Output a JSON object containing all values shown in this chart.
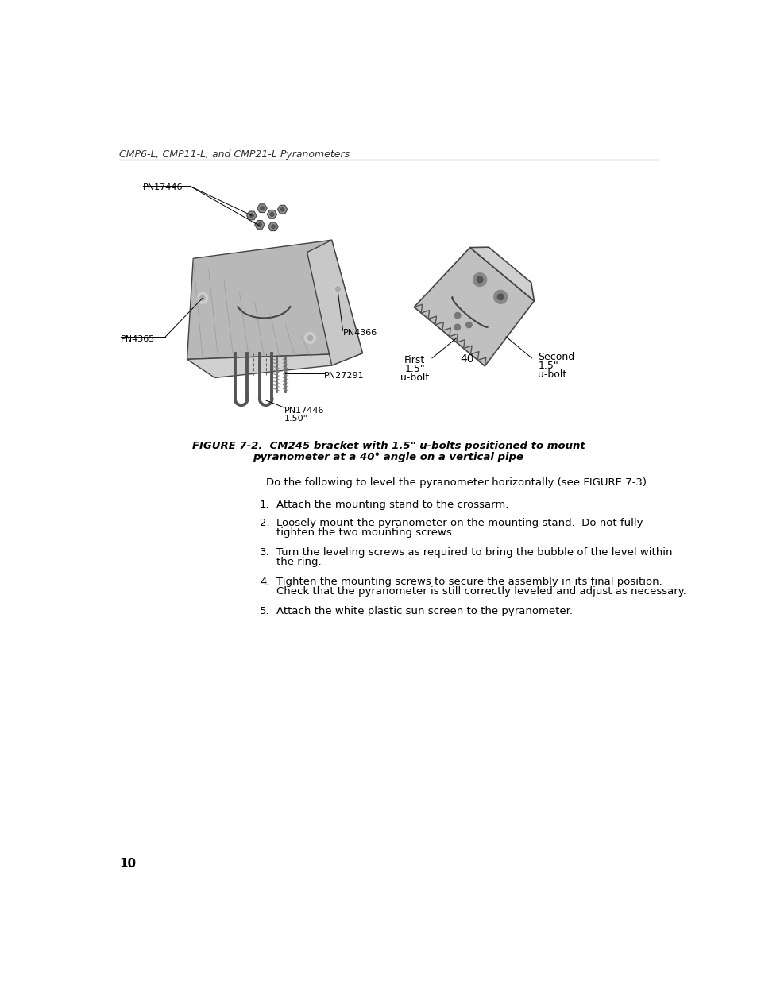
{
  "page_header": "CMP6-L, CMP11-L, and CMP21-L Pyranometers",
  "page_number": "10",
  "figure_caption_line1": "FIGURE 7-2.  CM245 bracket with 1.5\" u-bolts positioned to mount",
  "figure_caption_line2": "pyranometer at a 40° angle on a vertical pipe",
  "body_intro": "Do the following to level the pyranometer horizontally (see FIGURE 7-3):",
  "numbered_items": [
    {
      "num": "1.",
      "text_line1": "Attach the mounting stand to the crossarm.",
      "text_line2": null
    },
    {
      "num": "2.",
      "text_line1": "Loosely mount the pyranometer on the mounting stand.  Do not fully",
      "text_line2": "tighten the two mounting screws."
    },
    {
      "num": "3.",
      "text_line1": "Turn the leveling screws as required to bring the bubble of the level within",
      "text_line2": "the ring."
    },
    {
      "num": "4.",
      "text_line1": "Tighten the mounting screws to secure the assembly in its final position.",
      "text_line2": "Check that the pyranometer is still correctly leveled and adjust as necessary."
    },
    {
      "num": "5.",
      "text_line1": "Attach the white plastic sun screen to the pyranometer.",
      "text_line2": null
    }
  ],
  "labels": {
    "pn17446_top": "PN17446",
    "pn4365": "PN4365",
    "pn4366": "PN4366",
    "pn27291": "PN27291",
    "pn17446_bottom_a": "PN17446",
    "pn17446_bottom_b": "1.50\"",
    "first_ubolt_a": "First",
    "first_ubolt_b": "1.5\"",
    "first_ubolt_c": "u-bolt",
    "angle_label": "40",
    "second_ubolt_a": "Second",
    "second_ubolt_b": "1.5\"",
    "second_ubolt_c": "u-bolt"
  },
  "background_color": "#ffffff",
  "text_color": "#000000",
  "header_color": "#333333",
  "line_color": "#000000"
}
